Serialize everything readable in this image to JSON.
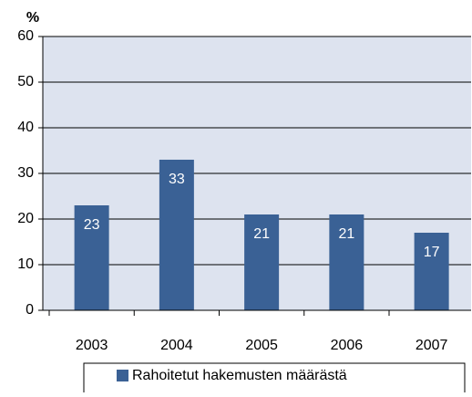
{
  "chart_data": {
    "type": "bar",
    "y_label": "%",
    "categories": [
      "2003",
      "2004",
      "2005",
      "2006",
      "2007"
    ],
    "series": [
      {
        "name": "Rahoitetut hakemusten määrästä",
        "color": "#3a6195",
        "values": [
          23,
          33,
          21,
          21,
          17
        ]
      }
    ],
    "ylim": [
      0,
      60
    ],
    "yticks": [
      0,
      10,
      20,
      30,
      40,
      50,
      60
    ],
    "grid": true
  }
}
